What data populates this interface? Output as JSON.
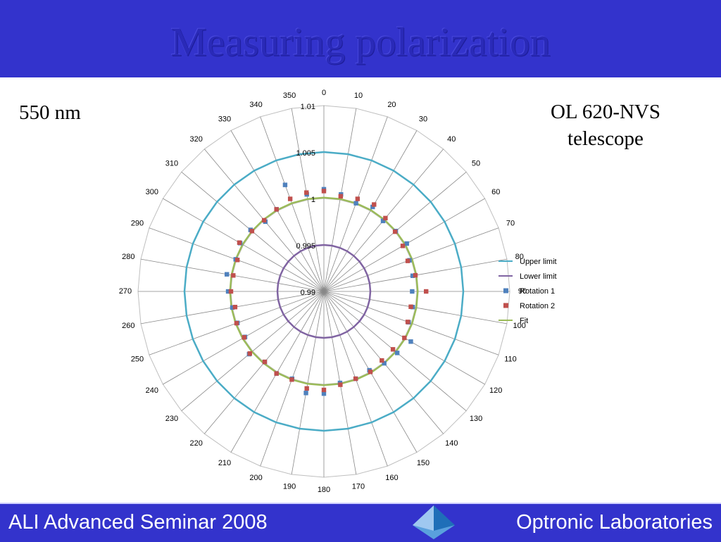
{
  "slide": {
    "title": "Measuring polarization",
    "wavelength_label": "550 nm",
    "instrument_label_line1": "OL 620-NVS",
    "instrument_label_line2": "telescope",
    "footer_left": "ALI Advanced Seminar 2008",
    "footer_right": "Optronic Laboratories",
    "header_color": "#3333cc",
    "logo_icon": "pyramid-logo-icon"
  },
  "chart_data": {
    "type": "polar",
    "angle_ticks": [
      "0",
      "10",
      "20",
      "30",
      "40",
      "50",
      "60",
      "70",
      "80",
      "90",
      "100",
      "110",
      "120",
      "130",
      "140",
      "150",
      "160",
      "170",
      "180",
      "190",
      "200",
      "210",
      "220",
      "230",
      "240",
      "250",
      "260",
      "270",
      "280",
      "290",
      "300",
      "310",
      "320",
      "330",
      "340",
      "350"
    ],
    "radial_ticks": [
      "0.99",
      "0.995",
      "1",
      "1.005",
      "1.01"
    ],
    "radial_range": [
      0.99,
      1.01
    ],
    "grid": true,
    "legend_position": "right",
    "series": [
      {
        "name": "Upper limit",
        "style": "line",
        "color": "#4bacc6",
        "value": 1.005
      },
      {
        "name": "Lower limit",
        "style": "line",
        "color": "#8064a2",
        "value": 0.995
      },
      {
        "name": "Rotation 1",
        "style": "marker",
        "color": "#4f81bd",
        "angles": [
          0,
          10,
          20,
          30,
          40,
          50,
          60,
          70,
          80,
          90,
          100,
          110,
          120,
          130,
          140,
          150,
          160,
          170,
          180,
          190,
          200,
          210,
          220,
          230,
          240,
          250,
          260,
          270,
          280,
          290,
          300,
          310,
          320,
          330,
          340,
          350
        ],
        "values": [
          1.001,
          1.0006,
          1.0001,
          1.0005,
          0.9999,
          1.0001,
          1.0003,
          0.9998,
          0.9997,
          0.9995,
          0.9997,
          0.9997,
          1.0008,
          1.0003,
          1.0001,
          0.9998,
          1.0,
          1.0,
          1.001,
          1.0011,
          1.0,
          1.0002,
          0.9999,
          1.0005,
          0.9998,
          0.9999,
          1.0,
          1.0003,
          1.0006,
          1.0001,
          1.0004,
          1.0003,
          0.9998,
          1.0002,
          1.0022,
          1.0006
        ]
      },
      {
        "name": "Rotation 2",
        "style": "marker",
        "color": "#c0504d",
        "angles": [
          0,
          10,
          20,
          30,
          40,
          50,
          60,
          70,
          80,
          90,
          100,
          110,
          120,
          130,
          140,
          150,
          160,
          170,
          180,
          190,
          200,
          210,
          220,
          230,
          240,
          250,
          260,
          270,
          280,
          290,
          300,
          310,
          320,
          330,
          340,
          350
        ],
        "values": [
          1.0008,
          1.0004,
          1.0006,
          1.0008,
          1.0003,
          1.0,
          0.9998,
          0.9996,
          1.0,
          1.001,
          0.9995,
          0.9996,
          1.0,
          0.9997,
          0.9997,
          1.0,
          1.0,
          1.0002,
          1.0006,
          1.0006,
          1.0001,
          1.0002,
          0.9999,
          1.0004,
          0.9999,
          1.0,
          0.9997,
          1.0,
          0.9999,
          0.9999,
          1.0005,
          1.0001,
          1.0,
          1.0002,
          1.0006,
          1.0008
        ]
      },
      {
        "name": "Fit",
        "style": "line",
        "color": "#9bbb59",
        "value": 1.0001
      }
    ]
  }
}
